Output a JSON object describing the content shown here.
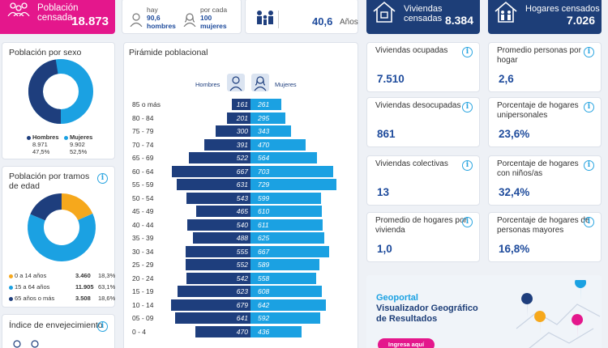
{
  "top": {
    "population": {
      "label": "Población censada",
      "value": "18.873"
    },
    "ratio": {
      "prefix": "hay",
      "men_value": "90,6",
      "men_label": "hombres",
      "per_label": "por cada",
      "women_value": "100",
      "women_label": "mujeres"
    },
    "avg_age": {
      "value": "40,6",
      "unit": "Años"
    },
    "dwellings": {
      "label": "Viviendas censadas",
      "value": "8.384"
    },
    "households": {
      "label": "Hogares censados",
      "value": "7.026"
    }
  },
  "sex_chart": {
    "title": "Población por sexo",
    "legend": [
      {
        "name": "Hombres",
        "count": "8.971",
        "pct": "47,5%",
        "color": "#1e3e7d"
      },
      {
        "name": "Mujeres",
        "count": "9.902",
        "pct": "52,5%",
        "color": "#1ba1e2"
      }
    ]
  },
  "age_chart": {
    "title": "Población por tramos de edad",
    "groups": [
      {
        "name": "0 a 14 años",
        "count": "3.460",
        "pct": "18,3%",
        "color": "#f6a81c"
      },
      {
        "name": "15 a 64 años",
        "count": "11.905",
        "pct": "63,1%",
        "color": "#1ba1e2"
      },
      {
        "name": "65 años o más",
        "count": "3.508",
        "pct": "18,6%",
        "color": "#1e3e7d"
      }
    ]
  },
  "aging": {
    "title": "Índice de envejecimiento"
  },
  "pyramid": {
    "title": "Pirámide poblacional",
    "men_label": "Hombres",
    "women_label": "Mujeres"
  },
  "chart_data": {
    "type": "bar",
    "title": "Pirámide poblacional",
    "categories": [
      "85 o más",
      "80 - 84",
      "75 - 79",
      "70 - 74",
      "65 - 69",
      "60 - 64",
      "55 - 59",
      "50 - 54",
      "45 - 49",
      "40 - 44",
      "35 - 39",
      "30 - 34",
      "25 - 29",
      "20 - 24",
      "15 - 19",
      "10 - 14",
      "05 - 09",
      "0 - 4"
    ],
    "series": [
      {
        "name": "Hombres",
        "values": [
          161,
          201,
          300,
          391,
          522,
          667,
          631,
          543,
          465,
          540,
          488,
          555,
          552,
          542,
          623,
          679,
          641,
          470
        ],
        "labels": [
          "161",
          "201",
          "300",
          "391",
          "522",
          "667",
          "631",
          "543",
          "465",
          "540",
          "488",
          "555",
          "552",
          "542",
          "623",
          "679",
          "641",
          "470"
        ]
      },
      {
        "name": "Mujeres",
        "values": [
          261,
          295,
          343,
          470,
          564,
          703,
          729,
          599,
          610,
          611,
          625,
          667,
          589,
          558,
          608,
          642,
          592,
          436
        ],
        "labels": [
          "261",
          "295",
          "343",
          "470",
          "564",
          "703",
          "729",
          "599",
          "610",
          "611",
          "625",
          "667",
          "589",
          "558",
          "608",
          "642",
          "592",
          "436"
        ]
      }
    ]
  },
  "stats": [
    {
      "label": "Viviendas ocupadas",
      "value": "7.510"
    },
    {
      "label": "Promedio personas por hogar",
      "value": "2,6"
    },
    {
      "label": "Viviendas desocupadas",
      "value": "861"
    },
    {
      "label": "Porcentaje de hogares unipersonales",
      "value": "23,6%"
    },
    {
      "label": "Viviendas colectivas",
      "value": "13"
    },
    {
      "label": "Porcentaje de hogares con niños/as",
      "value": "32,4%"
    },
    {
      "label": "Promedio de hogares por vivienda",
      "value": "1,0"
    },
    {
      "label": "Porcentaje de hogares de personas mayores",
      "value": "16,8%"
    }
  ],
  "geoportal": {
    "line1": "Geoportal",
    "line2": "Visualizador Geográfico",
    "line3": "de Resultados",
    "button": "Ingresa aquí"
  },
  "colors": {
    "navy": "#1e3e7d",
    "blue": "#1ba1e2",
    "magenta": "#e4178c",
    "orange": "#f6a81c"
  }
}
